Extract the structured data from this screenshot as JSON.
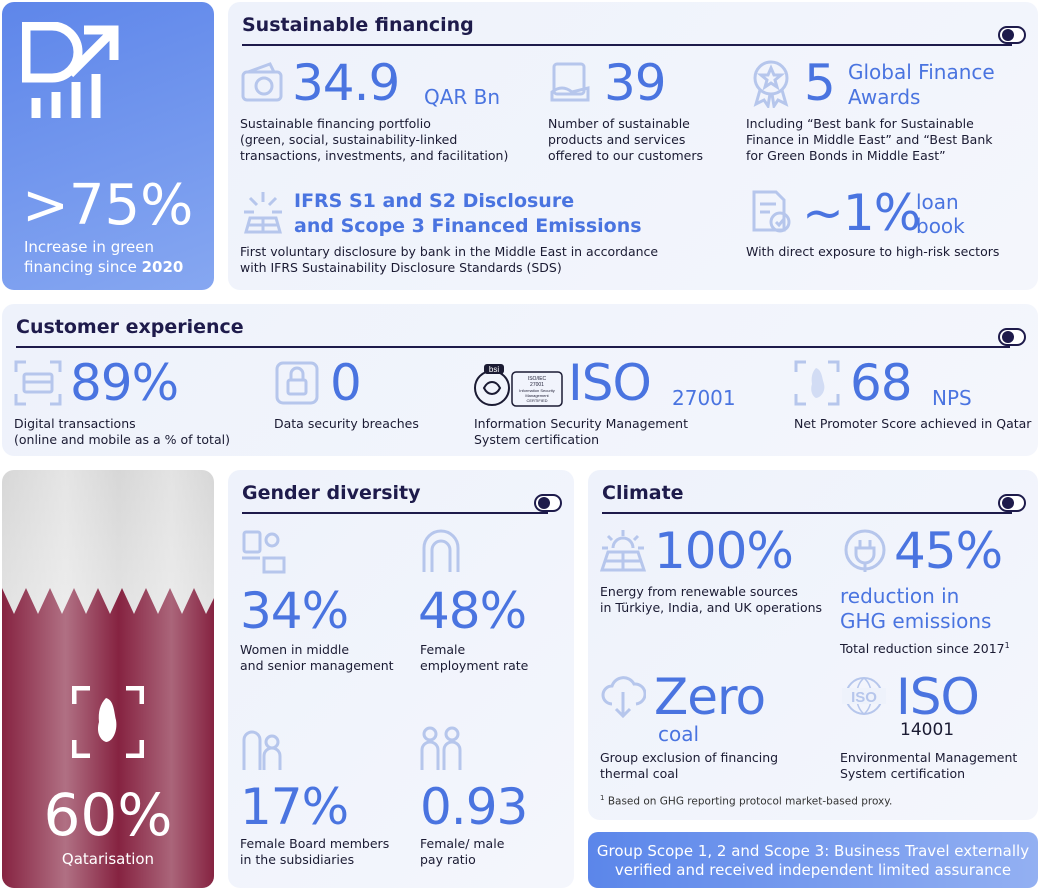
{
  "hero_green": {
    "value": ">75%",
    "label_line1": "Increase in green",
    "label_line2_prefix": "financing since ",
    "label_line2_year": "2020"
  },
  "sustainable_financing": {
    "title": "Sustainable financing",
    "portfolio": {
      "value": "34.9",
      "unit": "QAR Bn",
      "desc": [
        "Sustainable financing portfolio",
        "(green, social, sustainability-linked",
        "transactions, investments, and facilitation)"
      ]
    },
    "products": {
      "value": "39",
      "desc": [
        "Number of sustainable",
        "products and services",
        "offered to our customers"
      ]
    },
    "awards": {
      "value": "5",
      "unit": [
        "Global Finance",
        "Awards"
      ],
      "desc": [
        "Including “Best bank for Sustainable",
        "Finance in Middle East” and “Best Bank",
        "for Green Bonds in Middle East”"
      ]
    },
    "ifrs": {
      "heading": [
        "IFRS S1 and S2 Disclosure",
        "and Scope 3 Financed Emissions"
      ],
      "desc": [
        "First voluntary disclosure by bank in the Middle East in accordance",
        "with IFRS Sustainability Disclosure Standards (SDS)"
      ]
    },
    "loan": {
      "value": "~1%",
      "unit": [
        "loan",
        "book"
      ],
      "desc": [
        "With direct exposure to high-risk sectors"
      ]
    }
  },
  "customer_experience": {
    "title": "Customer experience",
    "digital": {
      "value": "89%",
      "desc": [
        "Digital transactions",
        "(online and mobile as a % of total)"
      ]
    },
    "breaches": {
      "value": "0",
      "desc": [
        "Data security breaches"
      ]
    },
    "iso": {
      "value": "ISO",
      "unit": "27001",
      "badge": [
        "bsi",
        "ISO/IEC",
        "27001",
        "Information Security",
        "Management",
        "CERTIFIED"
      ],
      "desc": [
        "Information Security Management",
        "System certification"
      ]
    },
    "nps": {
      "value": "68",
      "unit": "NPS",
      "desc": [
        "Net Promoter Score achieved in Qatar"
      ]
    }
  },
  "qatarisation": {
    "value": "60%",
    "label": "Qatarisation"
  },
  "gender_diversity": {
    "title": "Gender diversity",
    "items": [
      {
        "value": "34%",
        "desc": [
          "Women in middle",
          "and senior management"
        ]
      },
      {
        "value": "48%",
        "desc": [
          "Female",
          "employment rate"
        ]
      },
      {
        "value": "17%",
        "desc": [
          "Female Board members",
          "in the subsidiaries"
        ]
      },
      {
        "value": "0.93",
        "desc": [
          "Female/ male",
          "pay ratio"
        ]
      }
    ]
  },
  "climate": {
    "title": "Climate",
    "renewable": {
      "value": "100%",
      "desc": [
        "Energy from renewable sources",
        "in Türkiye, India, and UK operations"
      ]
    },
    "ghg": {
      "value": "45%",
      "unit": [
        "reduction in",
        "GHG emissions"
      ],
      "desc": "Total reduction since 2017",
      "sup": "1"
    },
    "coal": {
      "value": "Zero",
      "unit": "coal",
      "desc": [
        "Group exclusion of financing",
        "thermal coal"
      ]
    },
    "iso": {
      "value": "ISO",
      "unit": "14001",
      "badge": "ISO",
      "desc": [
        "Environmental Management",
        "System certification"
      ]
    },
    "footnote_mark": "1",
    "footnote": "Based on GHG reporting protocol market-based proxy."
  },
  "banner": {
    "lines": [
      "Group Scope 1, 2 and Scope 3: Business Travel externally",
      "verified and received independent limited assurance"
    ]
  },
  "colors": {
    "accent": "#4a74e0",
    "navy": "#1e1b4b",
    "maroon": "#8b1e3f",
    "panel": "#eef2fb"
  }
}
